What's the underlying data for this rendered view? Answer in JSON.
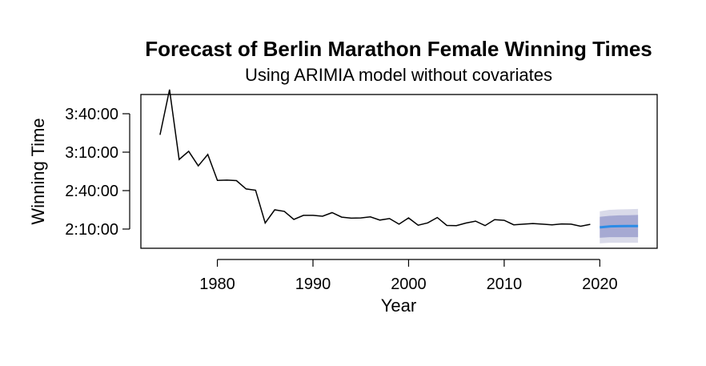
{
  "chart_data": {
    "type": "line",
    "title": "Forecast of Berlin Marathon Female Winning Times",
    "subtitle": "Using ARIMIA model without covariates",
    "xlabel": "Year",
    "ylabel": "Winning Time",
    "xlim": [
      1972,
      2026
    ],
    "ylim_seconds": [
      6900,
      14100
    ],
    "x_ticks": [
      1980,
      1990,
      2000,
      2010,
      2020
    ],
    "x_tick_labels": [
      "1980",
      "1990",
      "2000",
      "2010",
      "2020"
    ],
    "y_ticks_seconds": [
      7800,
      9600,
      11400,
      13200
    ],
    "y_tick_labels": [
      "2:10:00",
      "2:40:00",
      "3:10:00",
      "3:40:00"
    ],
    "grid": false,
    "colors": {
      "history": "#000000",
      "forecast_mean": "#2b8be6",
      "band_80": "#a6a9d2",
      "band_95": "#d9dae9"
    },
    "series": [
      {
        "role": "history",
        "x": [
          1974,
          1975,
          1976,
          1977,
          1978,
          1979,
          1980,
          1981,
          1982,
          1983,
          1984,
          1985,
          1986,
          1987,
          1988,
          1989,
          1990,
          1991,
          1992,
          1993,
          1994,
          1995,
          1996,
          1997,
          1998,
          1999,
          2000,
          2001,
          2002,
          2003,
          2004,
          2005,
          2006,
          2007,
          2008,
          2009,
          2010,
          2011,
          2012,
          2013,
          2014,
          2015,
          2016,
          2017,
          2018,
          2019
        ],
        "y": [
          12210,
          14330,
          11060,
          11440,
          10760,
          11290,
          10080,
          10090,
          10070,
          9680,
          9620,
          8080,
          8700,
          8630,
          8250,
          8440,
          8440,
          8400,
          8570,
          8360,
          8310,
          8320,
          8370,
          8220,
          8290,
          8030,
          8320,
          7980,
          8090,
          8340,
          7970,
          7960,
          8080,
          8170,
          7960,
          8240,
          8210,
          8000,
          8030,
          8060,
          8030,
          8000,
          8040,
          8030,
          7930,
          8020
        ]
      },
      {
        "role": "forecast",
        "x": [
          2020,
          2021,
          2022,
          2023,
          2024
        ],
        "mean": [
          7880,
          7925,
          7935,
          7940,
          7940
        ],
        "lo80": [
          7390,
          7420,
          7420,
          7420,
          7420
        ],
        "hi80": [
          8370,
          8420,
          8440,
          8450,
          8460
        ],
        "lo95": [
          7130,
          7160,
          7160,
          7160,
          7160
        ],
        "hi95": [
          8630,
          8700,
          8720,
          8730,
          8740
        ]
      }
    ]
  }
}
